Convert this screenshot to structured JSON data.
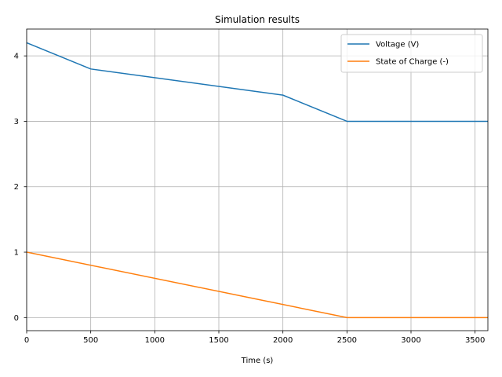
{
  "chart_data": {
    "type": "line",
    "title": "Simulation results",
    "xlabel": "Time (s)",
    "ylabel": "",
    "xlim": [
      0,
      3600
    ],
    "ylim": [
      -0.2,
      4.41
    ],
    "xticks": [
      0,
      500,
      1000,
      1500,
      2000,
      2500,
      3000,
      3500
    ],
    "yticks": [
      0,
      1,
      2,
      3,
      4
    ],
    "xtick_labels": [
      "0",
      "500",
      "1000",
      "1500",
      "2000",
      "2500",
      "3000",
      "3500"
    ],
    "ytick_labels": [
      "0",
      "1",
      "2",
      "3",
      "4"
    ],
    "grid": true,
    "legend_position": "top-right",
    "series": [
      {
        "name": "Voltage (V)",
        "color": "#1f77b4",
        "x": [
          0,
          500,
          2000,
          2500,
          3600
        ],
        "y": [
          4.2,
          3.8,
          3.4,
          3.0,
          3.0
        ]
      },
      {
        "name": "State of Charge (-)",
        "color": "#ff7f0e",
        "x": [
          0,
          2500,
          3600
        ],
        "y": [
          1.0,
          0.0,
          0.0
        ]
      }
    ]
  }
}
